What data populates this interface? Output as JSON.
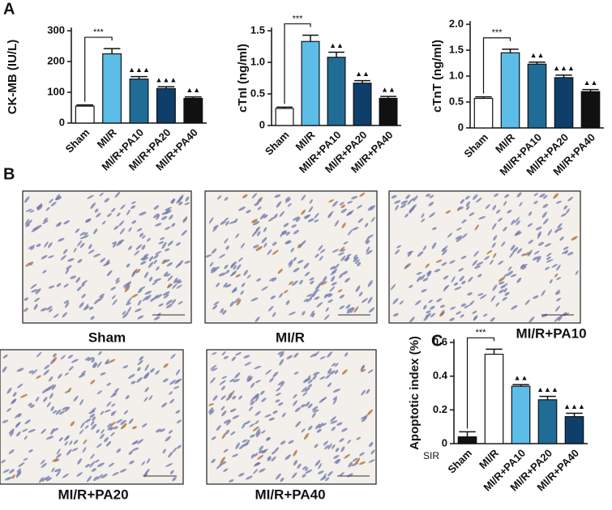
{
  "panel_labels": [
    "A",
    "B",
    "C"
  ],
  "micrographs": [
    {
      "label": "Sham"
    },
    {
      "label": "MI/R"
    },
    {
      "label": "MI/R+PA10"
    },
    {
      "label": "MI/R+PA20"
    },
    {
      "label": "MI/R+PA40"
    }
  ],
  "chart_data": [
    {
      "type": "bar",
      "y_label": "CK-MB (IU/L)",
      "categories": [
        "Sham",
        "MI/R",
        "MI/R+PA10",
        "MI/R+PA20",
        "MI/R+PA40"
      ],
      "values": [
        55,
        225,
        143,
        112,
        80
      ],
      "errors": [
        4,
        17,
        8,
        6,
        5
      ],
      "colors": [
        "#ffffff",
        "#5bbde8",
        "#1f6d96",
        "#0e3f6b",
        "#111111"
      ],
      "ylim": [
        0,
        300
      ],
      "yticks": [
        0,
        100,
        200,
        300
      ],
      "bracket": "***",
      "markers": [
        null,
        null,
        "▲▲▲",
        "▲▲▲",
        "▲▲"
      ]
    },
    {
      "type": "bar",
      "y_label": "cTnI (ng/ml)",
      "categories": [
        "Sham",
        "MI/R",
        "MI/R+PA10",
        "MI/R+PA20",
        "MI/R+PA40"
      ],
      "values": [
        0.27,
        1.33,
        1.08,
        0.67,
        0.43
      ],
      "errors": [
        0.02,
        0.1,
        0.08,
        0.04,
        0.03
      ],
      "colors": [
        "#ffffff",
        "#5bbde8",
        "#1f6d96",
        "#0e3f6b",
        "#111111"
      ],
      "ylim": [
        0,
        1.5
      ],
      "yticks": [
        0,
        0.5,
        {
          "value": 1,
          "label": "1.0"
        },
        1.5
      ],
      "bracket": "***",
      "markers": [
        null,
        null,
        "▲▲",
        "▲▲",
        "▲▲"
      ]
    },
    {
      "type": "bar",
      "y_label": "cTnT (ng/ml)",
      "categories": [
        "Sham",
        "MI/R",
        "MI/R+PA10",
        "MI/R+PA20",
        "MI/R+PA40"
      ],
      "values": [
        0.57,
        1.45,
        1.23,
        0.97,
        0.7
      ],
      "errors": [
        0.03,
        0.07,
        0.04,
        0.05,
        0.04
      ],
      "colors": [
        "#ffffff",
        "#5bbde8",
        "#1f6d96",
        "#0e3f6b",
        "#111111"
      ],
      "ylim": [
        0,
        2
      ],
      "yticks": [
        0,
        0.5,
        {
          "value": 1,
          "label": "1.0"
        },
        1.5,
        {
          "value": 2,
          "label": "2.0"
        }
      ],
      "bracket": "***",
      "markers": [
        null,
        null,
        "▲▲",
        "▲▲▲",
        "▲▲"
      ]
    },
    {
      "type": "bar",
      "y_label": "Apoptotic index (%)",
      "group_label": "SIR",
      "categories": [
        "Sham",
        "MI/R",
        "MI/R+PA10",
        "MI/R+PA20",
        "MI/R+PA40"
      ],
      "values": [
        0.04,
        0.53,
        0.34,
        0.26,
        0.16
      ],
      "errors": [
        0.03,
        0.03,
        0.01,
        0.02,
        0.02
      ],
      "colors": [
        "#111111",
        "#ffffff",
        "#5bbde8",
        "#1f6d96",
        "#0e3f6b"
      ],
      "ylim": [
        0,
        0.6
      ],
      "yticks": [
        0,
        0.2,
        0.4,
        0.6
      ],
      "bracket": "***",
      "markers": [
        null,
        null,
        "▲▲",
        "▲▲▲",
        "▲▲▲"
      ]
    }
  ]
}
